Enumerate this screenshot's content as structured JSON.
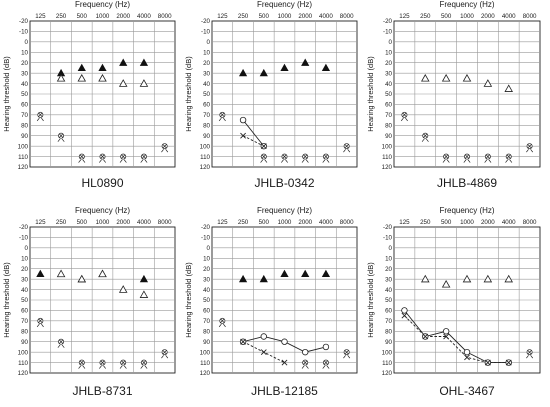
{
  "chart_data": [
    {
      "type": "scatter",
      "title": "HL0890",
      "xlabel": "Frequency (Hz)",
      "ylabel": "Hearing threshold (dB)",
      "x_ticks": [
        "125",
        "250",
        "500",
        "1000",
        "2000",
        "4000",
        "8000"
      ],
      "ylim": [
        -20,
        120
      ],
      "y_ticks": [
        "-20",
        "-10",
        "0",
        "10",
        "20",
        "30",
        "40",
        "50",
        "60",
        "70",
        "80",
        "90",
        "100",
        "110",
        "120"
      ],
      "y_reversed": true,
      "series": [
        {
          "marker": "filled-triangle",
          "line": "none",
          "points": [
            {
              "x": "250",
              "y": 30
            },
            {
              "x": "500",
              "y": 25
            },
            {
              "x": "1000",
              "y": 25
            },
            {
              "x": "2000",
              "y": 20
            },
            {
              "x": "4000",
              "y": 20
            }
          ]
        },
        {
          "marker": "open-triangle",
          "line": "none",
          "points": [
            {
              "x": "250",
              "y": 35
            },
            {
              "x": "500",
              "y": 35
            },
            {
              "x": "1000",
              "y": 35
            },
            {
              "x": "2000",
              "y": 40
            },
            {
              "x": "4000",
              "y": 40
            }
          ]
        },
        {
          "marker": "circle-x-no-response",
          "line": "none",
          "points": [
            {
              "x": "125",
              "y": 70
            },
            {
              "x": "250",
              "y": 90
            },
            {
              "x": "500",
              "y": 110
            },
            {
              "x": "1000",
              "y": 110
            },
            {
              "x": "2000",
              "y": 110
            },
            {
              "x": "4000",
              "y": 110
            },
            {
              "x": "8000",
              "y": 100
            }
          ]
        }
      ]
    },
    {
      "type": "scatter",
      "title": "JHLB-0342",
      "xlabel": "Frequency (Hz)",
      "ylabel": "Hearing threshold (dB)",
      "x_ticks": [
        "125",
        "250",
        "500",
        "1000",
        "2000",
        "4000",
        "8000"
      ],
      "ylim": [
        -20,
        120
      ],
      "y_ticks": [
        "-20",
        "-10",
        "0",
        "10",
        "20",
        "30",
        "40",
        "50",
        "60",
        "70",
        "80",
        "90",
        "100",
        "110",
        "120"
      ],
      "y_reversed": true,
      "series": [
        {
          "marker": "filled-triangle",
          "line": "none",
          "points": [
            {
              "x": "250",
              "y": 30
            },
            {
              "x": "500",
              "y": 30
            },
            {
              "x": "1000",
              "y": 25
            },
            {
              "x": "2000",
              "y": 20
            },
            {
              "x": "4000",
              "y": 25
            }
          ]
        },
        {
          "marker": "open-circle",
          "line": "solid",
          "points": [
            {
              "x": "250",
              "y": 75
            },
            {
              "x": "500",
              "y": 100
            }
          ]
        },
        {
          "marker": "x",
          "line": "dashed",
          "points": [
            {
              "x": "250",
              "y": 90
            },
            {
              "x": "500",
              "y": 100
            }
          ]
        },
        {
          "marker": "circle-x-no-response",
          "line": "none",
          "points": [
            {
              "x": "125",
              "y": 70
            },
            {
              "x": "500",
              "y": 110
            },
            {
              "x": "1000",
              "y": 110
            },
            {
              "x": "2000",
              "y": 110
            },
            {
              "x": "4000",
              "y": 110
            },
            {
              "x": "8000",
              "y": 100
            }
          ]
        }
      ]
    },
    {
      "type": "scatter",
      "title": "JHLB-4869",
      "xlabel": "Frequency (Hz)",
      "ylabel": "Hearing threshold (dB)",
      "x_ticks": [
        "125",
        "250",
        "500",
        "1000",
        "2000",
        "4000",
        "8000"
      ],
      "ylim": [
        -20,
        120
      ],
      "y_ticks": [
        "-20",
        "-10",
        "0",
        "10",
        "20",
        "30",
        "40",
        "50",
        "60",
        "70",
        "80",
        "90",
        "100",
        "110",
        "120"
      ],
      "y_reversed": true,
      "series": [
        {
          "marker": "open-triangle",
          "line": "none",
          "points": [
            {
              "x": "250",
              "y": 35
            },
            {
              "x": "500",
              "y": 35
            },
            {
              "x": "1000",
              "y": 35
            },
            {
              "x": "2000",
              "y": 40
            },
            {
              "x": "4000",
              "y": 45
            }
          ]
        },
        {
          "marker": "circle-x-no-response",
          "line": "none",
          "points": [
            {
              "x": "125",
              "y": 70
            },
            {
              "x": "250",
              "y": 90
            },
            {
              "x": "500",
              "y": 110
            },
            {
              "x": "1000",
              "y": 110
            },
            {
              "x": "2000",
              "y": 110
            },
            {
              "x": "4000",
              "y": 110
            },
            {
              "x": "8000",
              "y": 100
            }
          ]
        }
      ]
    },
    {
      "type": "scatter",
      "title": "JHLB-8731",
      "xlabel": "Frequency (Hz)",
      "ylabel": "Hearing threshold (dB)",
      "x_ticks": [
        "125",
        "250",
        "500",
        "1000",
        "2000",
        "4000",
        "8000"
      ],
      "ylim": [
        -20,
        120
      ],
      "y_ticks": [
        "-20",
        "-10",
        "0",
        "10",
        "20",
        "30",
        "40",
        "50",
        "60",
        "70",
        "80",
        "90",
        "100",
        "110",
        "120"
      ],
      "y_reversed": true,
      "series": [
        {
          "marker": "filled-triangle",
          "line": "none",
          "points": [
            {
              "x": "125",
              "y": 25
            },
            {
              "x": "500",
              "y": 30
            },
            {
              "x": "1000",
              "y": 25
            },
            {
              "x": "4000",
              "y": 30
            }
          ]
        },
        {
          "marker": "open-triangle",
          "line": "none",
          "points": [
            {
              "x": "250",
              "y": 25
            },
            {
              "x": "500",
              "y": 30
            },
            {
              "x": "1000",
              "y": 25
            },
            {
              "x": "2000",
              "y": 40
            },
            {
              "x": "4000",
              "y": 45
            }
          ]
        },
        {
          "marker": "circle-x-no-response",
          "line": "none",
          "points": [
            {
              "x": "125",
              "y": 70
            },
            {
              "x": "250",
              "y": 90
            },
            {
              "x": "500",
              "y": 110
            },
            {
              "x": "1000",
              "y": 110
            },
            {
              "x": "2000",
              "y": 110
            },
            {
              "x": "4000",
              "y": 110
            },
            {
              "x": "8000",
              "y": 100
            }
          ]
        }
      ]
    },
    {
      "type": "line",
      "title": "JHLB-12185",
      "xlabel": "Frequency (Hz)",
      "ylabel": "Hearing threshold (dB)",
      "x_ticks": [
        "125",
        "250",
        "500",
        "1000",
        "2000",
        "4000",
        "8000"
      ],
      "ylim": [
        -20,
        120
      ],
      "y_ticks": [
        "-20",
        "-10",
        "0",
        "10",
        "20",
        "30",
        "40",
        "50",
        "60",
        "70",
        "80",
        "90",
        "100",
        "110",
        "120"
      ],
      "y_reversed": true,
      "series": [
        {
          "marker": "filled-triangle",
          "line": "none",
          "points": [
            {
              "x": "250",
              "y": 30
            },
            {
              "x": "500",
              "y": 30
            },
            {
              "x": "1000",
              "y": 25
            },
            {
              "x": "2000",
              "y": 25
            },
            {
              "x": "4000",
              "y": 25
            }
          ]
        },
        {
          "marker": "open-circle",
          "line": "solid",
          "points": [
            {
              "x": "250",
              "y": 90
            },
            {
              "x": "500",
              "y": 85
            },
            {
              "x": "1000",
              "y": 90
            },
            {
              "x": "2000",
              "y": 100
            },
            {
              "x": "4000",
              "y": 95
            }
          ]
        },
        {
          "marker": "x",
          "line": "dashed",
          "points": [
            {
              "x": "250",
              "y": 90
            },
            {
              "x": "500",
              "y": 100
            },
            {
              "x": "1000",
              "y": 110
            }
          ]
        },
        {
          "marker": "circle-x-no-response",
          "line": "none",
          "points": [
            {
              "x": "125",
              "y": 70
            },
            {
              "x": "2000",
              "y": 110
            },
            {
              "x": "4000",
              "y": 110
            },
            {
              "x": "8000",
              "y": 100
            }
          ]
        }
      ]
    },
    {
      "type": "line",
      "title": "OHL-3467",
      "xlabel": "Frequency (Hz)",
      "ylabel": "Hearing threshold (dB)",
      "x_ticks": [
        "125",
        "250",
        "500",
        "1000",
        "2000",
        "4000",
        "8000"
      ],
      "ylim": [
        -20,
        120
      ],
      "y_ticks": [
        "-20",
        "-10",
        "0",
        "10",
        "20",
        "30",
        "40",
        "50",
        "60",
        "70",
        "80",
        "90",
        "100",
        "110",
        "120"
      ],
      "y_reversed": true,
      "series": [
        {
          "marker": "open-triangle",
          "line": "none",
          "points": [
            {
              "x": "250",
              "y": 30
            },
            {
              "x": "500",
              "y": 35
            },
            {
              "x": "1000",
              "y": 30
            },
            {
              "x": "2000",
              "y": 30
            },
            {
              "x": "4000",
              "y": 30
            }
          ]
        },
        {
          "marker": "open-circle",
          "line": "solid",
          "points": [
            {
              "x": "125",
              "y": 60
            },
            {
              "x": "250",
              "y": 85
            },
            {
              "x": "500",
              "y": 80
            },
            {
              "x": "1000",
              "y": 100
            },
            {
              "x": "2000",
              "y": 110
            },
            {
              "x": "4000",
              "y": 110
            }
          ]
        },
        {
          "marker": "x",
          "line": "dashed",
          "points": [
            {
              "x": "125",
              "y": 65
            },
            {
              "x": "250",
              "y": 85
            },
            {
              "x": "500",
              "y": 85
            },
            {
              "x": "1000",
              "y": 105
            },
            {
              "x": "2000",
              "y": 110
            },
            {
              "x": "4000",
              "y": 110
            }
          ]
        },
        {
          "marker": "circle-x-no-response",
          "line": "none",
          "points": [
            {
              "x": "8000",
              "y": 100
            }
          ]
        }
      ]
    }
  ]
}
